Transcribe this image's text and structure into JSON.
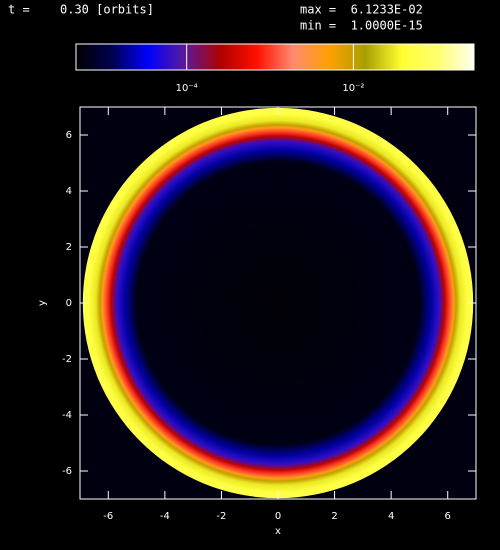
{
  "header": {
    "time_label": "t =",
    "time": "0.30 [orbits]",
    "max": "max =  6.1233E-02",
    "min": "min =  1.0000E-15"
  },
  "chart_data": {
    "type": "heatmap",
    "x_label": "x",
    "y_label": "y",
    "xlim": [
      -7,
      7
    ],
    "ylim": [
      -7,
      7
    ],
    "xticks": [
      -6,
      -4,
      -2,
      0,
      2,
      4,
      6
    ],
    "yticks": [
      -6,
      -4,
      -2,
      0,
      2,
      4,
      6
    ],
    "background": "#000010",
    "colorbar": {
      "log": true,
      "lim": [
        4.7e-06,
        0.28
      ],
      "ticks": [
        {
          "value": 0.0001,
          "label": "10⁻⁴"
        },
        {
          "value": 0.01,
          "label": "10⁻²"
        }
      ],
      "colormap": [
        "#000000",
        "#000050",
        "#0000ff",
        "#5a1a9a",
        "#b00000",
        "#ff1000",
        "#ff8a70",
        "#ffa000",
        "#a8a000",
        "#ffff30",
        "#ffff70",
        "#fffff0"
      ]
    },
    "profile": {
      "r": [
        0,
        5.0,
        5.4,
        5.7,
        5.9,
        6.05,
        6.2,
        6.3,
        6.45,
        6.7,
        6.9
      ],
      "values": [
        5e-06,
        6e-06,
        2e-05,
        6e-05,
        0.0003,
        0.001,
        0.004,
        0.01,
        0.03,
        0.05,
        0.06
      ]
    }
  }
}
